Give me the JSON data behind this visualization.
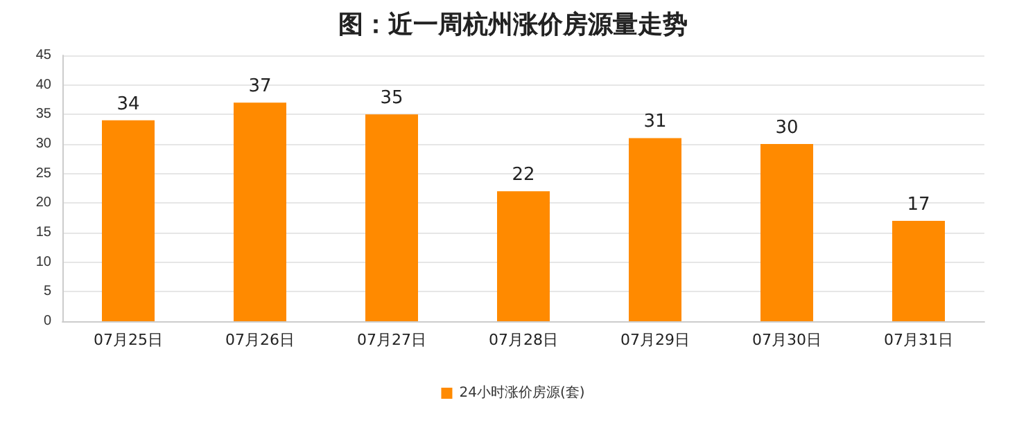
{
  "chart_data": {
    "type": "bar",
    "title": "图：近一周杭州涨价房源量走势",
    "categories": [
      "07月25日",
      "07月26日",
      "07月27日",
      "07月28日",
      "07月29日",
      "07月30日",
      "07月31日"
    ],
    "series": [
      {
        "name": "24小时涨价房源(套)",
        "color": "#ff8a00",
        "values": [
          34,
          37,
          35,
          22,
          31,
          30,
          17
        ]
      }
    ],
    "ylim": [
      0,
      45
    ],
    "yticks": [
      0,
      5,
      10,
      15,
      20,
      25,
      30,
      35,
      40,
      45
    ],
    "grid": "y",
    "legend": "bottom",
    "data_labels": true
  }
}
